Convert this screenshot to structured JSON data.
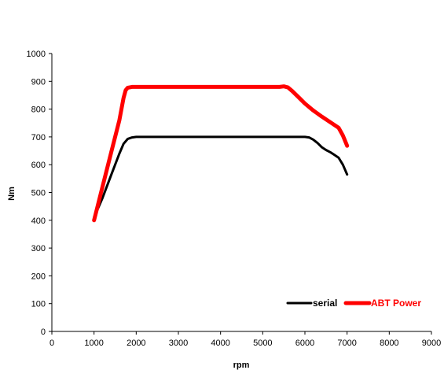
{
  "chart_data": {
    "type": "line",
    "xlabel": "rpm",
    "ylabel": "Nm",
    "xlim": [
      0,
      9000
    ],
    "ylim": [
      0,
      1000
    ],
    "xticks": [
      0,
      1000,
      2000,
      3000,
      4000,
      5000,
      6000,
      7000,
      8000,
      9000
    ],
    "yticks": [
      0,
      100,
      200,
      300,
      400,
      500,
      600,
      700,
      800,
      900,
      1000
    ],
    "grid": false,
    "legend_position": "bottom-right",
    "series": [
      {
        "name": "serial",
        "color": "#000000",
        "x": [
          1000,
          1200,
          1400,
          1600,
          1700,
          1800,
          1900,
          2000,
          3000,
          4000,
          5000,
          5800,
          6000,
          6100,
          6200,
          6300,
          6400,
          6500,
          6600,
          6700,
          6800,
          6900,
          7000
        ],
        "y": [
          410,
          480,
          560,
          640,
          675,
          693,
          698,
          700,
          700,
          700,
          700,
          700,
          700,
          698,
          690,
          678,
          663,
          653,
          645,
          635,
          625,
          600,
          565
        ]
      },
      {
        "name": "ABT Power",
        "color": "#ff0000",
        "x": [
          1000,
          1200,
          1400,
          1600,
          1700,
          1750,
          1800,
          1900,
          2000,
          3000,
          4000,
          5000,
          5400,
          5500,
          5600,
          5700,
          5800,
          6000,
          6200,
          6400,
          6600,
          6800,
          6900,
          7000
        ],
        "y": [
          400,
          520,
          640,
          760,
          840,
          868,
          877,
          880,
          880,
          880,
          880,
          880,
          880,
          882,
          878,
          865,
          850,
          820,
          795,
          773,
          753,
          733,
          705,
          668
        ]
      }
    ]
  }
}
